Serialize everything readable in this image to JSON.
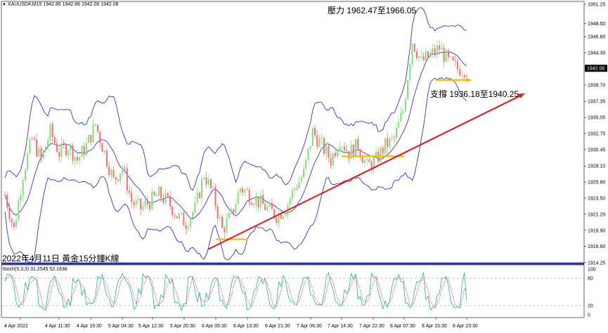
{
  "header": {
    "symbol_line": "XAUUSD#,M15  1942.86 1942.86 1942.08 1942.08",
    "stoch_line": "Stoch(5,3,3) 31.2545 52.1638"
  },
  "annotations": {
    "resistance": "壓力 1962.47至1966.05",
    "support": "支撐 1936.18至1940.25",
    "caption": "2022年4月11日 黃金15分鐘K線"
  },
  "colors": {
    "bull": "#7de07d",
    "bear": "#ff6b6b",
    "bands": "#1a1ae0",
    "trendline": "#ee1111",
    "hline": "#ffc000",
    "current_price_bg": "#000000",
    "stoch_main": "#20b2aa",
    "stoch_signal": "#ff4444",
    "stoch_level": "#888888"
  },
  "chart_data": {
    "type": "candlestick",
    "symbol": "XAUUSD#",
    "timeframe": "M15",
    "y_axis_ticks": [
      "1951.25",
      "1948.50",
      "1946.60",
      "1944.30",
      "1942.08",
      "1939.70",
      "1937.35",
      "1935.05",
      "1932.75",
      "1930.45",
      "1928.10",
      "1925.80",
      "1923.50",
      "1921.20",
      "1918.90",
      "1916.60",
      "1914.25"
    ],
    "x_axis_ticks": [
      "4 Apr 2022",
      "4 Apr 11:30",
      "4 Apr 19:30",
      "5 Apr 04:30",
      "5 Apr 12:30",
      "5 Apr 20:30",
      "6 Apr 05:30",
      "6 Apr 13:30",
      "6 Apr 21:30",
      "7 Apr 06:30",
      "7 Apr 14:30",
      "7 Apr 22:30",
      "8 Apr 07:30",
      "8 Apr 15:30",
      "8 Apr 23:30"
    ],
    "ylim": [
      1914.25,
      1951.25
    ],
    "current_price": 1942.08,
    "horizontal_levels": [
      {
        "price": 1917.6,
        "from": "6 Apr 05:30",
        "to": "6 Apr 13:30"
      },
      {
        "price": 1929.5,
        "from": "7 Apr 14:30",
        "to": "8 Apr 07:30"
      },
      {
        "price": 1940.4,
        "from": "8 Apr 15:30",
        "to": "8 Apr 23:30"
      }
    ],
    "trendline": {
      "from": [
        6,
        1916.2
      ],
      "to": [
        16.1,
        1938.5
      ]
    },
    "close_path": [
      1924,
      1919,
      1927,
      1932,
      1929,
      1933,
      1930,
      1931,
      1929,
      1931,
      1934,
      1930,
      1926,
      1928,
      1923,
      1922,
      1923,
      1924,
      1923,
      1921,
      1920,
      1922,
      1927,
      1924,
      1919,
      1921,
      1925,
      1924,
      1923,
      1922,
      1921,
      1922,
      1925,
      1927,
      1933,
      1931,
      1929,
      1932,
      1930,
      1931,
      1928,
      1929,
      1931,
      1932,
      1936,
      1946,
      1943,
      1944,
      1945,
      1943,
      1942,
      1942
    ],
    "stochastic": {
      "params": "5,3,3",
      "main": 31.2545,
      "signal": 52.1638,
      "levels": [
        80,
        20
      ],
      "ylim": [
        0,
        100
      ]
    }
  }
}
